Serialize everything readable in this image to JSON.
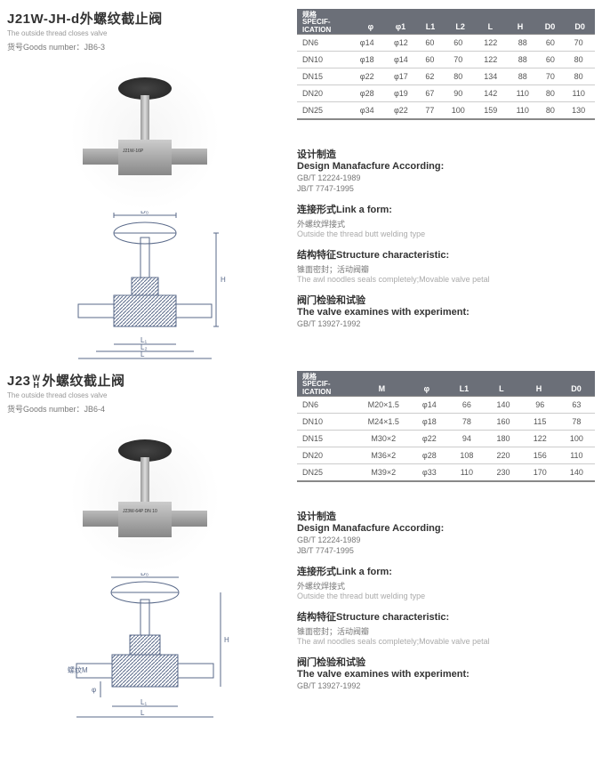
{
  "colors": {
    "header_bg": "#6b6f78",
    "header_fg": "#ffffff",
    "text_dark": "#333333",
    "text_muted": "#777777",
    "text_light": "#aaaaaa",
    "diagram_stroke": "#5a6a8a",
    "rule": "#cccccc"
  },
  "product1": {
    "title_code": "J21W-JH-d",
    "title_cn": "外螺纹截止阀",
    "title_en": "The outside thread closes valve",
    "goods_label": "货号Goods number：",
    "goods_no": "JB6-3",
    "photo_label": "J21W-16P",
    "diagram_dims": [
      "D₀",
      "H",
      "L₁",
      "L₂",
      "L"
    ],
    "spec": {
      "label_cn": "规格",
      "label_en1": "SPECIF-",
      "label_en2": "ICATION",
      "columns": [
        "φ",
        "φ1",
        "L1",
        "L2",
        "L",
        "H",
        "D0",
        "D0"
      ],
      "col_widths": [
        1,
        1,
        1,
        1,
        1,
        1,
        1,
        1
      ],
      "rows": [
        [
          "DN6",
          "φ14",
          "φ12",
          "60",
          "60",
          "122",
          "88",
          "60",
          "70"
        ],
        [
          "DN10",
          "φ18",
          "φ14",
          "60",
          "70",
          "122",
          "88",
          "60",
          "80"
        ],
        [
          "DN15",
          "φ22",
          "φ17",
          "62",
          "80",
          "134",
          "88",
          "70",
          "80"
        ],
        [
          "DN20",
          "φ28",
          "φ19",
          "67",
          "90",
          "142",
          "110",
          "80",
          "110"
        ],
        [
          "DN25",
          "φ34",
          "φ22",
          "77",
          "100",
          "159",
          "110",
          "80",
          "130"
        ]
      ]
    },
    "info": {
      "design_cn": "设计制造",
      "design_en": "Design Manafacfure According:",
      "design_std": [
        "GB/T 12224-1989",
        "JB/T 7747-1995"
      ],
      "link_cn": "连接形式",
      "link_en": "Link a form:",
      "link_desc_cn": "外螺纹焊接式",
      "link_desc_en": "Outside the thread butt welding type",
      "struct_cn": "结构特征",
      "struct_en": "Structure characteristic:",
      "struct_desc_cn": "锥面密封；活动阀瓣",
      "struct_desc_en": "The awl noodles seals completely;Movable valve petal",
      "exam_cn": "阀门检验和试验",
      "exam_en": "The valve examines with experiment:",
      "exam_std": "GB/T 13927-1992"
    }
  },
  "product2": {
    "title_code": "J23",
    "title_wh_top": "W",
    "title_wh_bot": "H",
    "title_cn": "外螺纹截止阀",
    "title_en": "The outside thread closes valve",
    "goods_label": "货号Goods number：",
    "goods_no": "JB6-4",
    "photo_label": "J23W-64P\\nDN 10",
    "diagram_dims": [
      "D₀",
      "H",
      "螺纹M",
      "L₁",
      "L"
    ],
    "spec": {
      "label_cn": "规格",
      "label_en1": "SPECIF-",
      "label_en2": "ICATION",
      "columns": [
        "M",
        "φ",
        "L1",
        "L",
        "H",
        "D0"
      ],
      "col_widths": [
        1.4,
        1,
        1,
        1,
        1,
        1
      ],
      "rows": [
        [
          "DN6",
          "M20×1.5",
          "φ14",
          "66",
          "140",
          "96",
          "63"
        ],
        [
          "DN10",
          "M24×1.5",
          "φ18",
          "78",
          "160",
          "115",
          "78"
        ],
        [
          "DN15",
          "M30×2",
          "φ22",
          "94",
          "180",
          "122",
          "100"
        ],
        [
          "DN20",
          "M36×2",
          "φ28",
          "108",
          "220",
          "156",
          "110"
        ],
        [
          "DN25",
          "M39×2",
          "φ33",
          "110",
          "230",
          "170",
          "140"
        ]
      ]
    },
    "info": {
      "design_cn": "设计制造",
      "design_en": "Design Manafacfure According:",
      "design_std": [
        "GB/T 12224-1989",
        "JB/T 7747-1995"
      ],
      "link_cn": "连接形式",
      "link_en": "Link a form:",
      "link_desc_cn": "外螺纹焊接式",
      "link_desc_en": "Outside the thread butt welding type",
      "struct_cn": "结构特征",
      "struct_en": "Structure characteristic:",
      "struct_desc_cn": "锥面密封；活动阀瓣",
      "struct_desc_en": "The awl noodles seals completely;Movable valve petal",
      "exam_cn": "阀门检验和试验",
      "exam_en": "The valve examines with experiment:",
      "exam_std": "GB/T 13927-1992"
    }
  }
}
